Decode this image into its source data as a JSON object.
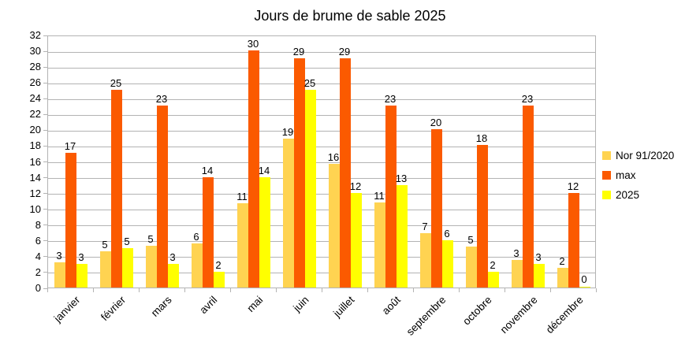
{
  "colors": {
    "nor": "#FFD351",
    "max": "#FB5A00",
    "y2025": "#FFFF00",
    "grid": "#B3B3B3",
    "text": "#000000",
    "background": "#FFFFFF"
  },
  "chart_data": {
    "type": "bar",
    "title": "Jours de brume de sable 2025",
    "xlabel": "",
    "ylabel": "",
    "categories": [
      "janvier",
      "février",
      "mars",
      "avril",
      "mai",
      "juin",
      "juillet",
      "août",
      "septembre",
      "octobre",
      "novembre",
      "décembre"
    ],
    "series": [
      {
        "name": "Nor 91/2020",
        "color_key": "nor",
        "values": [
          3,
          5,
          5,
          6,
          11,
          19,
          16,
          11,
          7,
          5,
          3,
          2
        ],
        "bar_heights": [
          3.2,
          4.6,
          5.3,
          5.6,
          10.7,
          18.8,
          15.7,
          10.8,
          6.9,
          5.2,
          3.5,
          2.5
        ]
      },
      {
        "name": "max",
        "color_key": "max",
        "values": [
          17,
          25,
          23,
          14,
          30,
          29,
          29,
          23,
          20,
          18,
          23,
          12
        ],
        "bar_heights": [
          17,
          25,
          23,
          14,
          30,
          29,
          29,
          23,
          20,
          18,
          23,
          12
        ]
      },
      {
        "name": "2025",
        "color_key": "y2025",
        "values": [
          3,
          5,
          3,
          2,
          14,
          25,
          12,
          13,
          6,
          2,
          3,
          0
        ],
        "bar_heights": [
          3,
          5,
          3,
          2,
          14,
          25,
          12,
          13,
          6,
          2,
          3,
          0.15
        ]
      }
    ],
    "ylim": [
      0,
      32
    ],
    "ytick_step": 2,
    "grid": true,
    "data_labels": true,
    "legend_position": "right"
  }
}
